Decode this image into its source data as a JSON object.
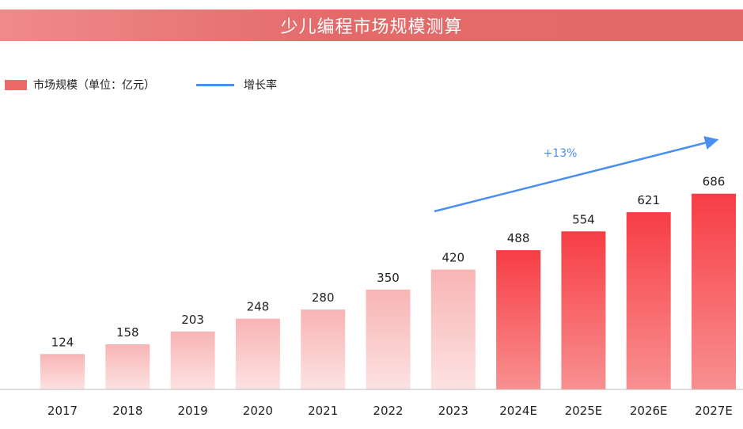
{
  "chart_data": {
    "type": "bar",
    "title": "少儿编程市场规模测算",
    "categories": [
      "2017",
      "2018",
      "2019",
      "2020",
      "2021",
      "2022",
      "2023",
      "2024E",
      "2025E",
      "2026E",
      "2027E"
    ],
    "series": [
      {
        "name": "市场规模（单位：亿元）",
        "values": [
          124,
          158,
          203,
          248,
          280,
          350,
          420,
          488,
          554,
          621,
          686
        ]
      }
    ],
    "trend_legend": "增长率",
    "trend_annotation": "+13%",
    "ylim": [
      0,
      760
    ],
    "legend_position": "top-left",
    "grid": false,
    "colors": {
      "historical_top": "#f8b4b4",
      "historical_bottom": "#fde2e2",
      "forecast_top": "#f73d45",
      "forecast_bottom": "#f89090",
      "trend": "#4a8ef2",
      "title_bar": "#e36868"
    }
  }
}
